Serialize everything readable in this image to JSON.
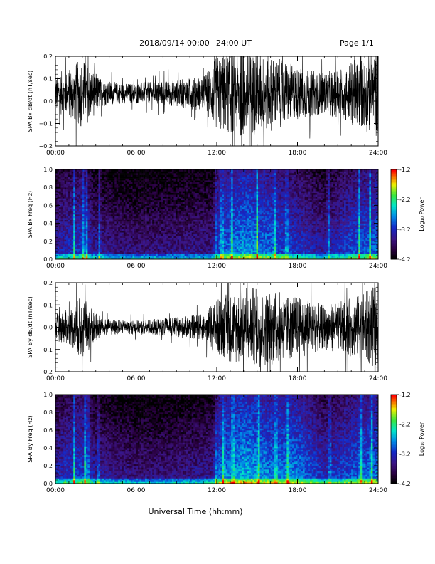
{
  "header": {
    "title": "2018/09/14   00:00−24:00 UT",
    "page_label": "Page 1/1"
  },
  "footer": {
    "xlabel": "Universal Time (hh:mm)"
  },
  "colorbar": {
    "label": "Log₁₀ Power",
    "ticks": [
      "-1.2",
      "-2.2",
      "-3.2",
      "-4.2"
    ],
    "range": [
      -4.2,
      -1.2
    ]
  },
  "chart_data": [
    {
      "type": "line",
      "ylabel": "SPA Bx dB/dt (nT/sec)",
      "x_range": [
        0,
        24
      ],
      "x_ticks": [
        "00:00",
        "06:00",
        "12:00",
        "18:00",
        "24:00"
      ],
      "ylim": [
        -0.2,
        0.2
      ],
      "y_ticks": [
        "0.2",
        "0.1",
        "0.0",
        "−0.1",
        "−0.2"
      ],
      "envelope": [
        {
          "t": 0.0,
          "amp": 0.09
        },
        {
          "t": 1.0,
          "amp": 0.11
        },
        {
          "t": 2.0,
          "amp": 0.16
        },
        {
          "t": 2.6,
          "amp": 0.12
        },
        {
          "t": 3.5,
          "amp": 0.06
        },
        {
          "t": 5.0,
          "amp": 0.045
        },
        {
          "t": 7.0,
          "amp": 0.05
        },
        {
          "t": 9.0,
          "amp": 0.06
        },
        {
          "t": 11.0,
          "amp": 0.08
        },
        {
          "t": 11.5,
          "amp": 0.12
        },
        {
          "t": 12.0,
          "amp": 0.17
        },
        {
          "t": 14.0,
          "amp": 0.2
        },
        {
          "t": 16.0,
          "amp": 0.17
        },
        {
          "t": 18.0,
          "amp": 0.12
        },
        {
          "t": 20.0,
          "amp": 0.09
        },
        {
          "t": 21.5,
          "amp": 0.13
        },
        {
          "t": 23.0,
          "amp": 0.17
        },
        {
          "t": 24.0,
          "amp": 0.2
        }
      ],
      "offset": 0.035
    },
    {
      "type": "heatmap",
      "ylabel": "SPA Bx Freq (Hz)",
      "x_range": [
        0,
        24
      ],
      "x_ticks": [
        "00:00",
        "06:00",
        "12:00",
        "18:00",
        "24:00"
      ],
      "ylim": [
        0.0,
        1.0
      ],
      "y_ticks": [
        "1.0",
        "0.8",
        "0.6",
        "0.4",
        "0.2",
        "0.0"
      ],
      "value_label": "Log10 Power",
      "vrange": [
        -4.2,
        -1.2
      ],
      "background_level": [
        {
          "t": 0.0,
          "v": -3.65
        },
        {
          "t": 2.0,
          "v": -3.4
        },
        {
          "t": 3.0,
          "v": -3.75
        },
        {
          "t": 6.0,
          "v": -3.9
        },
        {
          "t": 9.0,
          "v": -3.85
        },
        {
          "t": 11.9,
          "v": -3.8
        },
        {
          "t": 12.1,
          "v": -3.3
        },
        {
          "t": 14.0,
          "v": -3.0
        },
        {
          "t": 16.0,
          "v": -3.2
        },
        {
          "t": 18.0,
          "v": -3.45
        },
        {
          "t": 20.0,
          "v": -3.7
        },
        {
          "t": 22.0,
          "v": -3.35
        },
        {
          "t": 24.0,
          "v": -3.2
        }
      ],
      "bright_streaks_hours": [
        1.4,
        2.1,
        2.3,
        3.3,
        11.9,
        12.4,
        13.1,
        15.0,
        16.3,
        17.2,
        20.3,
        22.6,
        23.4
      ]
    },
    {
      "type": "line",
      "ylabel": "SPA By dB/dt (nT/sec)",
      "x_range": [
        0,
        24
      ],
      "x_ticks": [
        "00:00",
        "06:00",
        "12:00",
        "18:00",
        "24:00"
      ],
      "ylim": [
        -0.2,
        0.2
      ],
      "y_ticks": [
        "0.2",
        "0.1",
        "0.0",
        "−0.1",
        "−0.2"
      ],
      "envelope": [
        {
          "t": 0.0,
          "amp": 0.06
        },
        {
          "t": 1.0,
          "amp": 0.08
        },
        {
          "t": 2.0,
          "amp": 0.15
        },
        {
          "t": 2.6,
          "amp": 0.1
        },
        {
          "t": 3.5,
          "amp": 0.04
        },
        {
          "t": 5.0,
          "amp": 0.03
        },
        {
          "t": 7.0,
          "amp": 0.035
        },
        {
          "t": 9.0,
          "amp": 0.045
        },
        {
          "t": 11.0,
          "amp": 0.06
        },
        {
          "t": 12.0,
          "amp": 0.13
        },
        {
          "t": 14.0,
          "amp": 0.19
        },
        {
          "t": 16.0,
          "amp": 0.17
        },
        {
          "t": 18.0,
          "amp": 0.14
        },
        {
          "t": 20.0,
          "amp": 0.1
        },
        {
          "t": 21.5,
          "amp": 0.12
        },
        {
          "t": 23.0,
          "amp": 0.16
        },
        {
          "t": 24.0,
          "amp": 0.2
        }
      ],
      "offset": 0.0
    },
    {
      "type": "heatmap",
      "ylabel": "SPA By Freq (Hz)",
      "x_range": [
        0,
        24
      ],
      "x_ticks": [
        "00:00",
        "06:00",
        "12:00",
        "18:00",
        "24:00"
      ],
      "ylim": [
        0.0,
        1.0
      ],
      "y_ticks": [
        "1.0",
        "0.8",
        "0.6",
        "0.4",
        "0.2",
        "0.0"
      ],
      "value_label": "Log10 Power",
      "vrange": [
        -4.2,
        -1.2
      ],
      "background_level": [
        {
          "t": 0.0,
          "v": -3.6
        },
        {
          "t": 2.0,
          "v": -3.35
        },
        {
          "t": 3.0,
          "v": -3.7
        },
        {
          "t": 6.0,
          "v": -3.9
        },
        {
          "t": 9.0,
          "v": -3.85
        },
        {
          "t": 11.9,
          "v": -3.75
        },
        {
          "t": 12.1,
          "v": -3.2
        },
        {
          "t": 14.0,
          "v": -2.9
        },
        {
          "t": 16.0,
          "v": -3.1
        },
        {
          "t": 18.0,
          "v": -3.1
        },
        {
          "t": 20.0,
          "v": -3.55
        },
        {
          "t": 22.0,
          "v": -3.3
        },
        {
          "t": 24.0,
          "v": -3.1
        }
      ],
      "bright_streaks_hours": [
        1.4,
        2.2,
        2.4,
        3.2,
        11.9,
        12.5,
        13.2,
        15.1,
        16.4,
        17.3,
        20.4,
        22.7,
        23.5
      ]
    }
  ]
}
